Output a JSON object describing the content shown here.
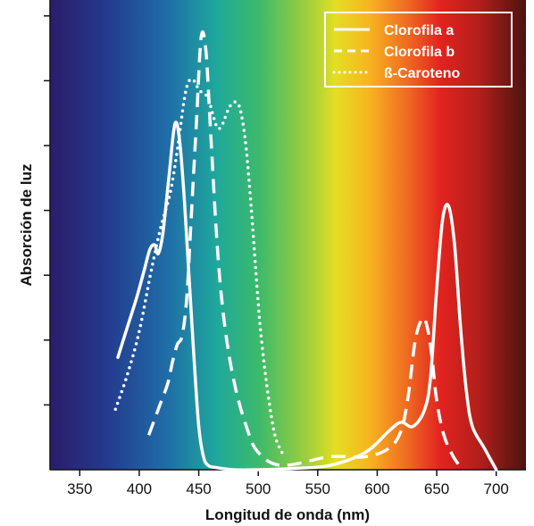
{
  "chart_data": {
    "type": "line",
    "xlabel": "Longitud de onda (nm)",
    "ylabel": "Absorción de luz",
    "xlim": [
      325,
      725
    ],
    "ylim": [
      0,
      1
    ],
    "x_ticks": [
      350,
      400,
      450,
      500,
      550,
      600,
      650,
      700
    ],
    "y_ticks": [
      0.15,
      0.3,
      0.45,
      0.6,
      0.75,
      0.9,
      1.05
    ],
    "grid": false,
    "legend_position": "top-right",
    "background": "visible-spectrum gradient (violet to dark red)",
    "series": [
      {
        "name": "Clorofila a",
        "style": "solid",
        "color": "#ffffff",
        "x": [
          382,
          390,
          398,
          404,
          409,
          413,
          416,
          420,
          425,
          430,
          434,
          438,
          442,
          446,
          450,
          454,
          458,
          465,
          480,
          500,
          530,
          560,
          590,
          610,
          620,
          630,
          640,
          645,
          650,
          655,
          660,
          665,
          670,
          675,
          680,
          690,
          700
        ],
        "y": [
          0.26,
          0.33,
          0.4,
          0.46,
          0.51,
          0.52,
          0.5,
          0.55,
          0.68,
          0.8,
          0.76,
          0.62,
          0.44,
          0.26,
          0.1,
          0.03,
          0.01,
          0.005,
          0.0,
          0.0,
          0.003,
          0.01,
          0.04,
          0.09,
          0.11,
          0.1,
          0.14,
          0.22,
          0.42,
          0.58,
          0.61,
          0.52,
          0.33,
          0.18,
          0.1,
          0.05,
          0.0
        ]
      },
      {
        "name": "Clorofila b",
        "style": "dashed",
        "color": "#ffffff",
        "x": [
          408,
          416,
          424,
          428,
          432,
          436,
          440,
          444,
          448,
          452,
          456,
          460,
          466,
          472,
          480,
          490,
          500,
          520,
          560,
          590,
          610,
          620,
          626,
          632,
          638,
          642,
          646,
          650,
          656,
          664,
          672
        ],
        "y": [
          0.08,
          0.14,
          0.2,
          0.25,
          0.29,
          0.31,
          0.4,
          0.6,
          0.8,
          1.0,
          0.97,
          0.78,
          0.5,
          0.33,
          0.2,
          0.1,
          0.04,
          0.01,
          0.03,
          0.03,
          0.05,
          0.09,
          0.17,
          0.3,
          0.35,
          0.33,
          0.26,
          0.16,
          0.08,
          0.03,
          0.0
        ]
      },
      {
        "name": "ß-Caroteno",
        "style": "dotted",
        "color": "#ffffff",
        "x": [
          380,
          390,
          400,
          410,
          418,
          426,
          432,
          438,
          442,
          446,
          450,
          454,
          458,
          462,
          466,
          470,
          476,
          482,
          486,
          490,
          494,
          498,
          502,
          508,
          514,
          520
        ],
        "y": [
          0.14,
          0.22,
          0.32,
          0.46,
          0.56,
          0.64,
          0.74,
          0.86,
          0.9,
          0.9,
          0.88,
          0.87,
          0.86,
          0.82,
          0.79,
          0.8,
          0.84,
          0.85,
          0.82,
          0.74,
          0.61,
          0.46,
          0.32,
          0.18,
          0.08,
          0.04
        ]
      }
    ]
  }
}
